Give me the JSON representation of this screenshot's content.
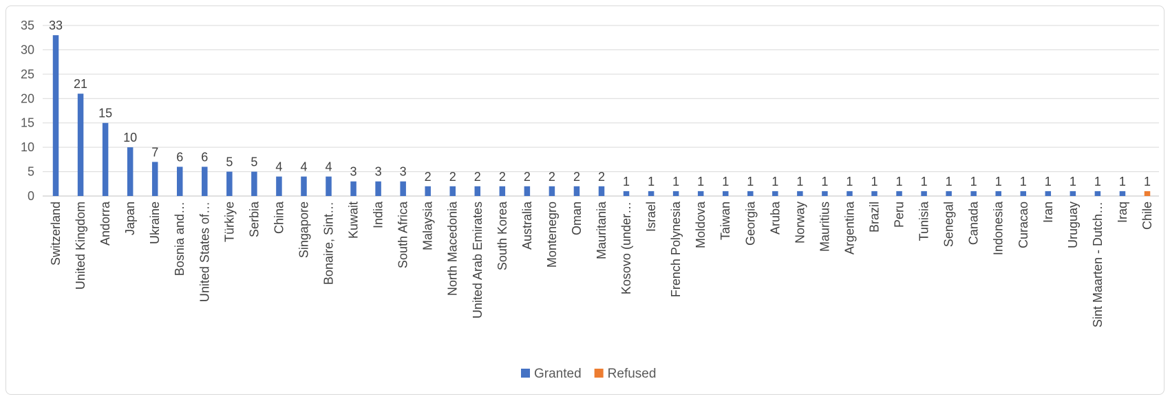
{
  "chart_data": {
    "type": "bar",
    "title": "",
    "xlabel": "",
    "ylabel": "",
    "ylim": [
      0,
      35
    ],
    "yticks": [
      0,
      5,
      10,
      15,
      20,
      25,
      30,
      35
    ],
    "grid": true,
    "legend_position": "bottom",
    "categories": [
      "Switzerland",
      "United Kingdom",
      "Andorra",
      "Japan",
      "Ukraine",
      "Bosnia and…",
      "United States of…",
      "Türkiye",
      "Serbia",
      "China",
      "Singapore",
      "Bonaire, Sint…",
      "Kuwait",
      "India",
      "South Africa",
      "Malaysia",
      "North Macedonia",
      "United Arab Emirates",
      "South Korea",
      "Australia",
      "Montenegro",
      "Oman",
      "Mauritania",
      "Kosovo (under…",
      "Israel",
      "French Polynesia",
      "Moldova",
      "Taiwan",
      "Georgia",
      "Aruba",
      "Norway",
      "Mauritius",
      "Argentina",
      "Brazil",
      "Peru",
      "Tunisia",
      "Senegal",
      "Canada",
      "Indonesia",
      "Curacao",
      "Iran",
      "Uruguay",
      "Sint Maarten - Dutch…",
      "Iraq",
      "Chile"
    ],
    "series": [
      {
        "name": "Granted",
        "color": "#4472c4",
        "values": [
          33,
          21,
          15,
          10,
          7,
          6,
          6,
          5,
          5,
          4,
          4,
          4,
          3,
          3,
          3,
          2,
          2,
          2,
          2,
          2,
          2,
          2,
          2,
          1,
          1,
          1,
          1,
          1,
          1,
          1,
          1,
          1,
          1,
          1,
          1,
          1,
          1,
          1,
          1,
          1,
          1,
          1,
          1,
          1,
          0
        ]
      },
      {
        "name": "Refused",
        "color": "#ed7d31",
        "values": [
          0,
          0,
          0,
          0,
          0,
          0,
          0,
          0,
          0,
          0,
          0,
          0,
          0,
          0,
          0,
          0,
          0,
          0,
          0,
          0,
          0,
          0,
          0,
          0,
          0,
          0,
          0,
          0,
          0,
          0,
          0,
          0,
          0,
          0,
          0,
          0,
          0,
          0,
          0,
          0,
          0,
          0,
          0,
          0,
          1
        ]
      }
    ]
  }
}
